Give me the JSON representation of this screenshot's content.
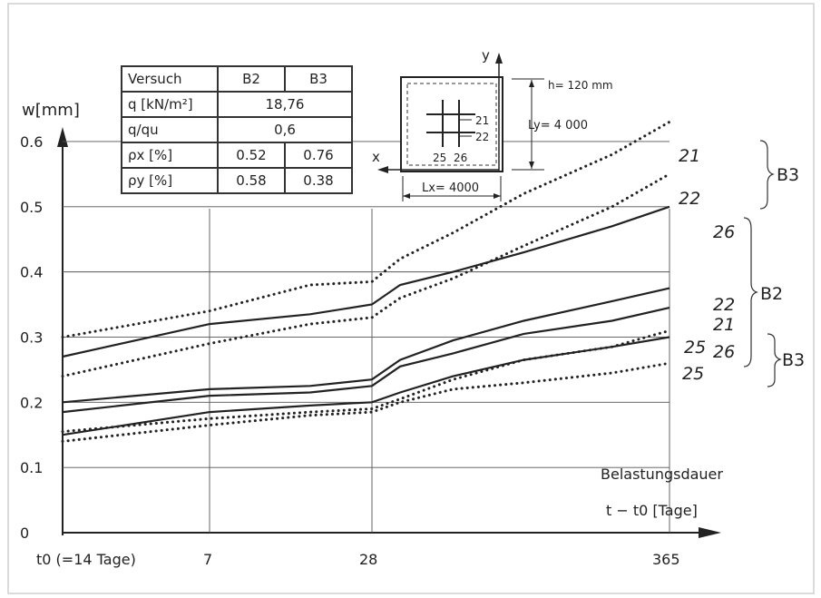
{
  "chart_data": {
    "type": "line",
    "y_axis_label": "w[mm]",
    "y_ticks": [
      "0",
      "0.1",
      "0.2",
      "0.3",
      "0.4",
      "0.5",
      "0.6"
    ],
    "ylim": [
      0,
      0.65
    ],
    "x_axis_label_line1": "Belastungsdauer",
    "x_axis_label_line2": "t − t0 [Tage]",
    "x_ticks": [
      "t0 (=14 Tage)",
      "7",
      "28",
      "365"
    ],
    "xlim": [
      0,
      365
    ],
    "grid": true,
    "series": [
      {
        "name": "21",
        "group": "B3",
        "style": "dotted",
        "x": [
          0,
          7,
          20,
          28,
          60,
          120,
          200,
          300,
          365
        ],
        "y": [
          0.3,
          0.34,
          0.38,
          0.385,
          0.42,
          0.46,
          0.52,
          0.58,
          0.63
        ]
      },
      {
        "name": "22",
        "group": "B3",
        "style": "dotted",
        "x": [
          0,
          7,
          20,
          28,
          60,
          120,
          200,
          300,
          365
        ],
        "y": [
          0.24,
          0.29,
          0.32,
          0.33,
          0.36,
          0.39,
          0.44,
          0.5,
          0.55
        ]
      },
      {
        "name": "26",
        "group": "B2",
        "style": "solid",
        "x": [
          0,
          7,
          20,
          28,
          60,
          120,
          200,
          300,
          365
        ],
        "y": [
          0.27,
          0.32,
          0.335,
          0.35,
          0.38,
          0.4,
          0.43,
          0.47,
          0.5
        ]
      },
      {
        "name": "22",
        "group": "B2",
        "style": "solid",
        "x": [
          0,
          7,
          20,
          28,
          60,
          120,
          200,
          300,
          365
        ],
        "y": [
          0.2,
          0.22,
          0.225,
          0.235,
          0.265,
          0.295,
          0.325,
          0.355,
          0.375
        ]
      },
      {
        "name": "21",
        "group": "B2",
        "style": "solid",
        "x": [
          0,
          7,
          20,
          28,
          60,
          120,
          200,
          300,
          365
        ],
        "y": [
          0.185,
          0.21,
          0.215,
          0.225,
          0.255,
          0.275,
          0.305,
          0.325,
          0.345
        ]
      },
      {
        "name": "25",
        "group": "B2",
        "style": "solid",
        "x": [
          0,
          7,
          20,
          28,
          60,
          120,
          200,
          300,
          365
        ],
        "y": [
          0.15,
          0.185,
          0.195,
          0.2,
          0.215,
          0.24,
          0.265,
          0.285,
          0.3
        ]
      },
      {
        "name": "26",
        "group": "B3",
        "style": "dotted",
        "x": [
          0,
          7,
          20,
          28,
          60,
          120,
          200,
          300,
          365
        ],
        "y": [
          0.155,
          0.175,
          0.185,
          0.19,
          0.205,
          0.235,
          0.265,
          0.285,
          0.31
        ]
      },
      {
        "name": "25",
        "group": "B3",
        "style": "dotted",
        "x": [
          0,
          7,
          20,
          28,
          60,
          120,
          200,
          300,
          365
        ],
        "y": [
          0.14,
          0.165,
          0.18,
          0.185,
          0.2,
          0.22,
          0.23,
          0.245,
          0.26
        ]
      }
    ],
    "group_labels": [
      "B3",
      "B2",
      "B3"
    ]
  },
  "table": {
    "header": [
      "Versuch",
      "B2",
      "B3"
    ],
    "rows": [
      {
        "label": "q [kN/m²]",
        "merged": "18,76"
      },
      {
        "label": "q/qu",
        "merged": "0,6"
      },
      {
        "label": "ρx [%]",
        "b2": "0.52",
        "b3": "0.76"
      },
      {
        "label": "ρy [%]",
        "b2": "0.58",
        "b3": "0.38"
      }
    ]
  },
  "slab_diagram": {
    "y_axis": "y",
    "x_axis": "x",
    "thickness": "h= 120 mm",
    "ly": "Ly= 4 000",
    "lx": "Lx= 4000",
    "gauge_labels": [
      "21",
      "22",
      "25",
      "26"
    ]
  }
}
